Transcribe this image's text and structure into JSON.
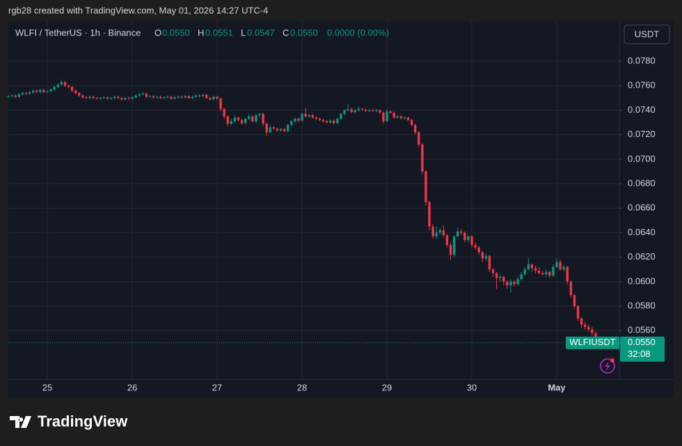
{
  "attribution": "rgb28 created with TradingView.com, May 01, 2026 14:27 UTC-4",
  "legend": {
    "symbol": "WLFI / TetherUS · 1h · Binance",
    "open_label": "O",
    "open": "0.0550",
    "high_label": "H",
    "high": "0.0551",
    "low_label": "L",
    "low": "0.0547",
    "close_label": "C",
    "close": "0.0550",
    "change": "0.0000 (0.00%)"
  },
  "currency_button": "USDT",
  "logo": "TradingView",
  "chart_data": {
    "type": "candlestick",
    "up_color": "#089981",
    "down_color": "#f23645",
    "grid": true,
    "ylim": [
      0.052,
      0.0813
    ],
    "yticks": [
      {
        "value": 0.056,
        "label": "0.0560"
      },
      {
        "value": 0.058,
        "label": "0.0580"
      },
      {
        "value": 0.06,
        "label": "0.0600"
      },
      {
        "value": 0.062,
        "label": "0.0620"
      },
      {
        "value": 0.064,
        "label": "0.0640"
      },
      {
        "value": 0.066,
        "label": "0.0660"
      },
      {
        "value": 0.068,
        "label": "0.0680"
      },
      {
        "value": 0.07,
        "label": "0.0700"
      },
      {
        "value": 0.072,
        "label": "0.0720"
      },
      {
        "value": 0.074,
        "label": "0.0740"
      },
      {
        "value": 0.076,
        "label": "0.0760"
      },
      {
        "value": 0.078,
        "label": "0.0780"
      }
    ],
    "last_price": {
      "value": 0.055,
      "label": "0.0550"
    },
    "last_price_symbol": "WLFIUSDT",
    "countdown": "32:08",
    "categories": [
      null,
      null,
      null,
      null,
      null,
      null,
      null,
      null,
      null,
      null,
      null,
      "25",
      null,
      null,
      null,
      null,
      null,
      null,
      null,
      null,
      null,
      null,
      null,
      null,
      null,
      null,
      null,
      null,
      null,
      null,
      null,
      null,
      null,
      null,
      null,
      "26",
      null,
      null,
      null,
      null,
      null,
      null,
      null,
      null,
      null,
      null,
      null,
      null,
      null,
      null,
      null,
      null,
      null,
      null,
      null,
      null,
      null,
      null,
      null,
      "27",
      null,
      null,
      null,
      null,
      null,
      null,
      null,
      null,
      null,
      null,
      null,
      null,
      null,
      null,
      null,
      null,
      null,
      null,
      null,
      null,
      null,
      null,
      null,
      "28",
      null,
      null,
      null,
      null,
      null,
      null,
      null,
      null,
      null,
      null,
      null,
      null,
      null,
      null,
      null,
      null,
      null,
      null,
      null,
      null,
      null,
      null,
      null,
      "29",
      null,
      null,
      null,
      null,
      null,
      null,
      null,
      null,
      null,
      null,
      null,
      null,
      null,
      null,
      null,
      null,
      null,
      null,
      null,
      null,
      null,
      null,
      null,
      "30",
      null,
      null,
      null,
      null,
      null,
      null,
      null,
      null,
      null,
      null,
      null,
      null,
      null,
      null,
      null,
      null,
      null,
      null,
      null,
      null,
      null,
      null,
      null,
      "May",
      null,
      null,
      null,
      null,
      null,
      null,
      null,
      null,
      null,
      null,
      null,
      null,
      null
    ],
    "ohlc": [
      [
        0.0751,
        0.07525,
        0.075,
        0.07515
      ],
      [
        0.07515,
        0.0753,
        0.07505,
        0.0752
      ],
      [
        0.0752,
        0.0753,
        0.075,
        0.0751
      ],
      [
        0.0751,
        0.0754,
        0.075,
        0.0753
      ],
      [
        0.0753,
        0.0755,
        0.0752,
        0.0754
      ],
      [
        0.0754,
        0.0755,
        0.07525,
        0.07535
      ],
      [
        0.07535,
        0.07555,
        0.07525,
        0.07545
      ],
      [
        0.07545,
        0.0757,
        0.07535,
        0.0756
      ],
      [
        0.0756,
        0.0757,
        0.0754,
        0.0755
      ],
      [
        0.0755,
        0.07575,
        0.0754,
        0.07565
      ],
      [
        0.07565,
        0.07575,
        0.0754,
        0.0755
      ],
      [
        0.0755,
        0.07565,
        0.0754,
        0.07555
      ],
      [
        0.07555,
        0.0758,
        0.07545,
        0.0757
      ],
      [
        0.0757,
        0.076,
        0.0756,
        0.0759
      ],
      [
        0.0759,
        0.0762,
        0.0758,
        0.0761
      ],
      [
        0.0761,
        0.0765,
        0.076,
        0.0763
      ],
      [
        0.0763,
        0.0764,
        0.0759,
        0.076
      ],
      [
        0.076,
        0.0761,
        0.0758,
        0.0759
      ],
      [
        0.0759,
        0.076,
        0.0755,
        0.0756
      ],
      [
        0.0756,
        0.0757,
        0.0753,
        0.0754
      ],
      [
        0.0754,
        0.0755,
        0.0751,
        0.0752
      ],
      [
        0.0752,
        0.0753,
        0.07495,
        0.07505
      ],
      [
        0.07505,
        0.07515,
        0.0749,
        0.075
      ],
      [
        0.075,
        0.0752,
        0.0749,
        0.0751
      ],
      [
        0.0751,
        0.0752,
        0.0749,
        0.075
      ],
      [
        0.075,
        0.0751,
        0.07485,
        0.07495
      ],
      [
        0.07495,
        0.0751,
        0.07485,
        0.075
      ],
      [
        0.075,
        0.07515,
        0.0749,
        0.07505
      ],
      [
        0.07505,
        0.07515,
        0.07485,
        0.07495
      ],
      [
        0.07495,
        0.0751,
        0.07485,
        0.075
      ],
      [
        0.075,
        0.0752,
        0.0749,
        0.0751
      ],
      [
        0.0751,
        0.0752,
        0.0749,
        0.075
      ],
      [
        0.075,
        0.0751,
        0.0748,
        0.0749
      ],
      [
        0.0749,
        0.0751,
        0.0748,
        0.075
      ],
      [
        0.075,
        0.0751,
        0.07485,
        0.07495
      ],
      [
        0.07495,
        0.07515,
        0.07485,
        0.07505
      ],
      [
        0.07505,
        0.0753,
        0.07495,
        0.0752
      ],
      [
        0.0752,
        0.0754,
        0.0751,
        0.0753
      ],
      [
        0.0753,
        0.0755,
        0.0752,
        0.07535
      ],
      [
        0.07535,
        0.07545,
        0.075,
        0.0751
      ],
      [
        0.0751,
        0.07525,
        0.075,
        0.07515
      ],
      [
        0.07515,
        0.07525,
        0.07495,
        0.07505
      ],
      [
        0.07505,
        0.0752,
        0.07495,
        0.0751
      ],
      [
        0.0751,
        0.0752,
        0.0749,
        0.075
      ],
      [
        0.075,
        0.07515,
        0.0749,
        0.07505
      ],
      [
        0.07505,
        0.0752,
        0.07495,
        0.0751
      ],
      [
        0.0751,
        0.0752,
        0.07485,
        0.07495
      ],
      [
        0.07495,
        0.07515,
        0.07485,
        0.07505
      ],
      [
        0.07505,
        0.0752,
        0.07495,
        0.0751
      ],
      [
        0.0751,
        0.0752,
        0.07495,
        0.07505
      ],
      [
        0.07505,
        0.07525,
        0.07495,
        0.07515
      ],
      [
        0.07515,
        0.07525,
        0.0749,
        0.075
      ],
      [
        0.075,
        0.0752,
        0.0749,
        0.0751
      ],
      [
        0.0751,
        0.0753,
        0.075,
        0.0752
      ],
      [
        0.0752,
        0.0753,
        0.07505,
        0.07515
      ],
      [
        0.07515,
        0.07535,
        0.07505,
        0.07525
      ],
      [
        0.07525,
        0.07535,
        0.0749,
        0.075
      ],
      [
        0.075,
        0.0751,
        0.0748,
        0.0749
      ],
      [
        0.0749,
        0.0752,
        0.0748,
        0.0751
      ],
      [
        0.0751,
        0.0752,
        0.07485,
        0.07495
      ],
      [
        0.07495,
        0.07505,
        0.0739,
        0.0741
      ],
      [
        0.0741,
        0.0742,
        0.0733,
        0.0735
      ],
      [
        0.0735,
        0.0736,
        0.0727,
        0.0729
      ],
      [
        0.0729,
        0.0733,
        0.0728,
        0.0731
      ],
      [
        0.0731,
        0.0736,
        0.073,
        0.0734
      ],
      [
        0.0734,
        0.0735,
        0.0731,
        0.0732
      ],
      [
        0.0732,
        0.0733,
        0.0728,
        0.07295
      ],
      [
        0.07295,
        0.0734,
        0.07285,
        0.0733
      ],
      [
        0.0733,
        0.0737,
        0.0732,
        0.0735
      ],
      [
        0.0735,
        0.0736,
        0.073,
        0.0731
      ],
      [
        0.0731,
        0.0737,
        0.073,
        0.0736
      ],
      [
        0.0736,
        0.0738,
        0.0734,
        0.0737
      ],
      [
        0.0737,
        0.0738,
        0.0727,
        0.0729
      ],
      [
        0.0729,
        0.073,
        0.0719,
        0.0722
      ],
      [
        0.0722,
        0.0728,
        0.0721,
        0.0726
      ],
      [
        0.0726,
        0.0727,
        0.0724,
        0.0725
      ],
      [
        0.0725,
        0.0726,
        0.07225,
        0.07235
      ],
      [
        0.07235,
        0.07255,
        0.07225,
        0.07245
      ],
      [
        0.07245,
        0.07255,
        0.0722,
        0.0723
      ],
      [
        0.0723,
        0.0729,
        0.0722,
        0.0728
      ],
      [
        0.0728,
        0.0732,
        0.0727,
        0.0731
      ],
      [
        0.0731,
        0.0734,
        0.073,
        0.0733
      ],
      [
        0.0733,
        0.0734,
        0.07305,
        0.07315
      ],
      [
        0.07315,
        0.0738,
        0.07305,
        0.0737
      ],
      [
        0.0737,
        0.0742,
        0.0734,
        0.0735
      ],
      [
        0.0735,
        0.0737,
        0.0734,
        0.0736
      ],
      [
        0.0736,
        0.0737,
        0.0733,
        0.0734
      ],
      [
        0.0734,
        0.0735,
        0.0732,
        0.0733
      ],
      [
        0.0733,
        0.0734,
        0.0731,
        0.0732
      ],
      [
        0.0732,
        0.0733,
        0.073,
        0.0731
      ],
      [
        0.0731,
        0.0732,
        0.0729,
        0.073
      ],
      [
        0.073,
        0.07325,
        0.0729,
        0.07315
      ],
      [
        0.07315,
        0.07325,
        0.07285,
        0.07295
      ],
      [
        0.07295,
        0.0734,
        0.07285,
        0.0733
      ],
      [
        0.0733,
        0.0738,
        0.0732,
        0.0737
      ],
      [
        0.0737,
        0.0741,
        0.0736,
        0.074
      ],
      [
        0.074,
        0.0745,
        0.0739,
        0.0741
      ],
      [
        0.0741,
        0.0742,
        0.07375,
        0.07385
      ],
      [
        0.07385,
        0.0741,
        0.07375,
        0.074
      ],
      [
        0.074,
        0.0743,
        0.0739,
        0.0741
      ],
      [
        0.0741,
        0.0742,
        0.07395,
        0.07405
      ],
      [
        0.07405,
        0.07415,
        0.07385,
        0.07395
      ],
      [
        0.07395,
        0.0741,
        0.07385,
        0.074
      ],
      [
        0.074,
        0.0741,
        0.07385,
        0.07395
      ],
      [
        0.07395,
        0.0741,
        0.07385,
        0.074
      ],
      [
        0.074,
        0.0741,
        0.0737,
        0.0738
      ],
      [
        0.0738,
        0.0739,
        0.0729,
        0.0731
      ],
      [
        0.0731,
        0.0741,
        0.073,
        0.0739
      ],
      [
        0.0739,
        0.074,
        0.0737,
        0.0738
      ],
      [
        0.0738,
        0.0739,
        0.0733,
        0.0734
      ],
      [
        0.0734,
        0.0736,
        0.0733,
        0.0735
      ],
      [
        0.0735,
        0.0736,
        0.07325,
        0.07335
      ],
      [
        0.07335,
        0.0735,
        0.07325,
        0.0734
      ],
      [
        0.0734,
        0.0735,
        0.0731,
        0.0732
      ],
      [
        0.0732,
        0.0733,
        0.0727,
        0.0728
      ],
      [
        0.0728,
        0.0729,
        0.072,
        0.0722
      ],
      [
        0.0722,
        0.0723,
        0.071,
        0.0712
      ],
      [
        0.0712,
        0.0713,
        0.0688,
        0.069
      ],
      [
        0.069,
        0.0691,
        0.0662,
        0.0665
      ],
      [
        0.0665,
        0.0666,
        0.0642,
        0.0645
      ],
      [
        0.0645,
        0.0647,
        0.0635,
        0.0637
      ],
      [
        0.0637,
        0.0645,
        0.0635,
        0.064
      ],
      [
        0.064,
        0.0644,
        0.0638,
        0.0642
      ],
      [
        0.0642,
        0.0646,
        0.0636,
        0.0638
      ],
      [
        0.0638,
        0.0639,
        0.0628,
        0.063
      ],
      [
        0.063,
        0.0632,
        0.0618,
        0.0622
      ],
      [
        0.0622,
        0.0638,
        0.062,
        0.0637
      ],
      [
        0.0637,
        0.0644,
        0.0636,
        0.0641
      ],
      [
        0.0641,
        0.0643,
        0.0638,
        0.064
      ],
      [
        0.064,
        0.0641,
        0.0632,
        0.0634
      ],
      [
        0.0634,
        0.0638,
        0.0632,
        0.0637
      ],
      [
        0.0637,
        0.0638,
        0.0628,
        0.063
      ],
      [
        0.063,
        0.0632,
        0.0626,
        0.0628
      ],
      [
        0.0628,
        0.0629,
        0.0622,
        0.0624
      ],
      [
        0.0624,
        0.0625,
        0.0616,
        0.0619
      ],
      [
        0.0619,
        0.0623,
        0.0617,
        0.0621
      ],
      [
        0.0621,
        0.0622,
        0.0608,
        0.061
      ],
      [
        0.061,
        0.0611,
        0.0604,
        0.0607
      ],
      [
        0.0607,
        0.0608,
        0.0594,
        0.0603
      ],
      [
        0.0603,
        0.0606,
        0.06,
        0.0604
      ],
      [
        0.0604,
        0.0605,
        0.0597,
        0.06
      ],
      [
        0.06,
        0.0601,
        0.0594,
        0.0597
      ],
      [
        0.0597,
        0.0602,
        0.0591,
        0.06
      ],
      [
        0.06,
        0.0601,
        0.0596,
        0.0598
      ],
      [
        0.0598,
        0.0604,
        0.0597,
        0.0602
      ],
      [
        0.0602,
        0.0608,
        0.0601,
        0.0606
      ],
      [
        0.0606,
        0.0612,
        0.0605,
        0.061
      ],
      [
        0.061,
        0.0619,
        0.0609,
        0.0614
      ],
      [
        0.0614,
        0.0615,
        0.0608,
        0.0611
      ],
      [
        0.0611,
        0.0613,
        0.0607,
        0.0609
      ],
      [
        0.0609,
        0.0612,
        0.0606,
        0.0607
      ],
      [
        0.0607,
        0.0609,
        0.0605,
        0.0606
      ],
      [
        0.0606,
        0.061,
        0.0604,
        0.0608
      ],
      [
        0.0608,
        0.0609,
        0.0603,
        0.0605
      ],
      [
        0.0605,
        0.0614,
        0.0604,
        0.0612
      ],
      [
        0.0612,
        0.0619,
        0.0611,
        0.0616
      ],
      [
        0.0616,
        0.0618,
        0.0609,
        0.061
      ],
      [
        0.061,
        0.0614,
        0.0608,
        0.0612
      ],
      [
        0.0612,
        0.0613,
        0.0598,
        0.06
      ],
      [
        0.06,
        0.0601,
        0.0587,
        0.0589
      ],
      [
        0.0589,
        0.059,
        0.0578,
        0.058
      ],
      [
        0.058,
        0.0581,
        0.0568,
        0.057
      ],
      [
        0.057,
        0.0571,
        0.0562,
        0.0565
      ],
      [
        0.0565,
        0.0567,
        0.0561,
        0.0563
      ],
      [
        0.0563,
        0.0565,
        0.0559,
        0.0561
      ],
      [
        0.0561,
        0.0563,
        0.0556,
        0.0558
      ],
      [
        0.0558,
        0.0559,
        0.0551,
        0.0553
      ],
      [
        0.0553,
        0.0555,
        0.0548,
        0.055
      ],
      [
        0.055,
        0.0551,
        0.0547,
        0.055
      ]
    ]
  }
}
